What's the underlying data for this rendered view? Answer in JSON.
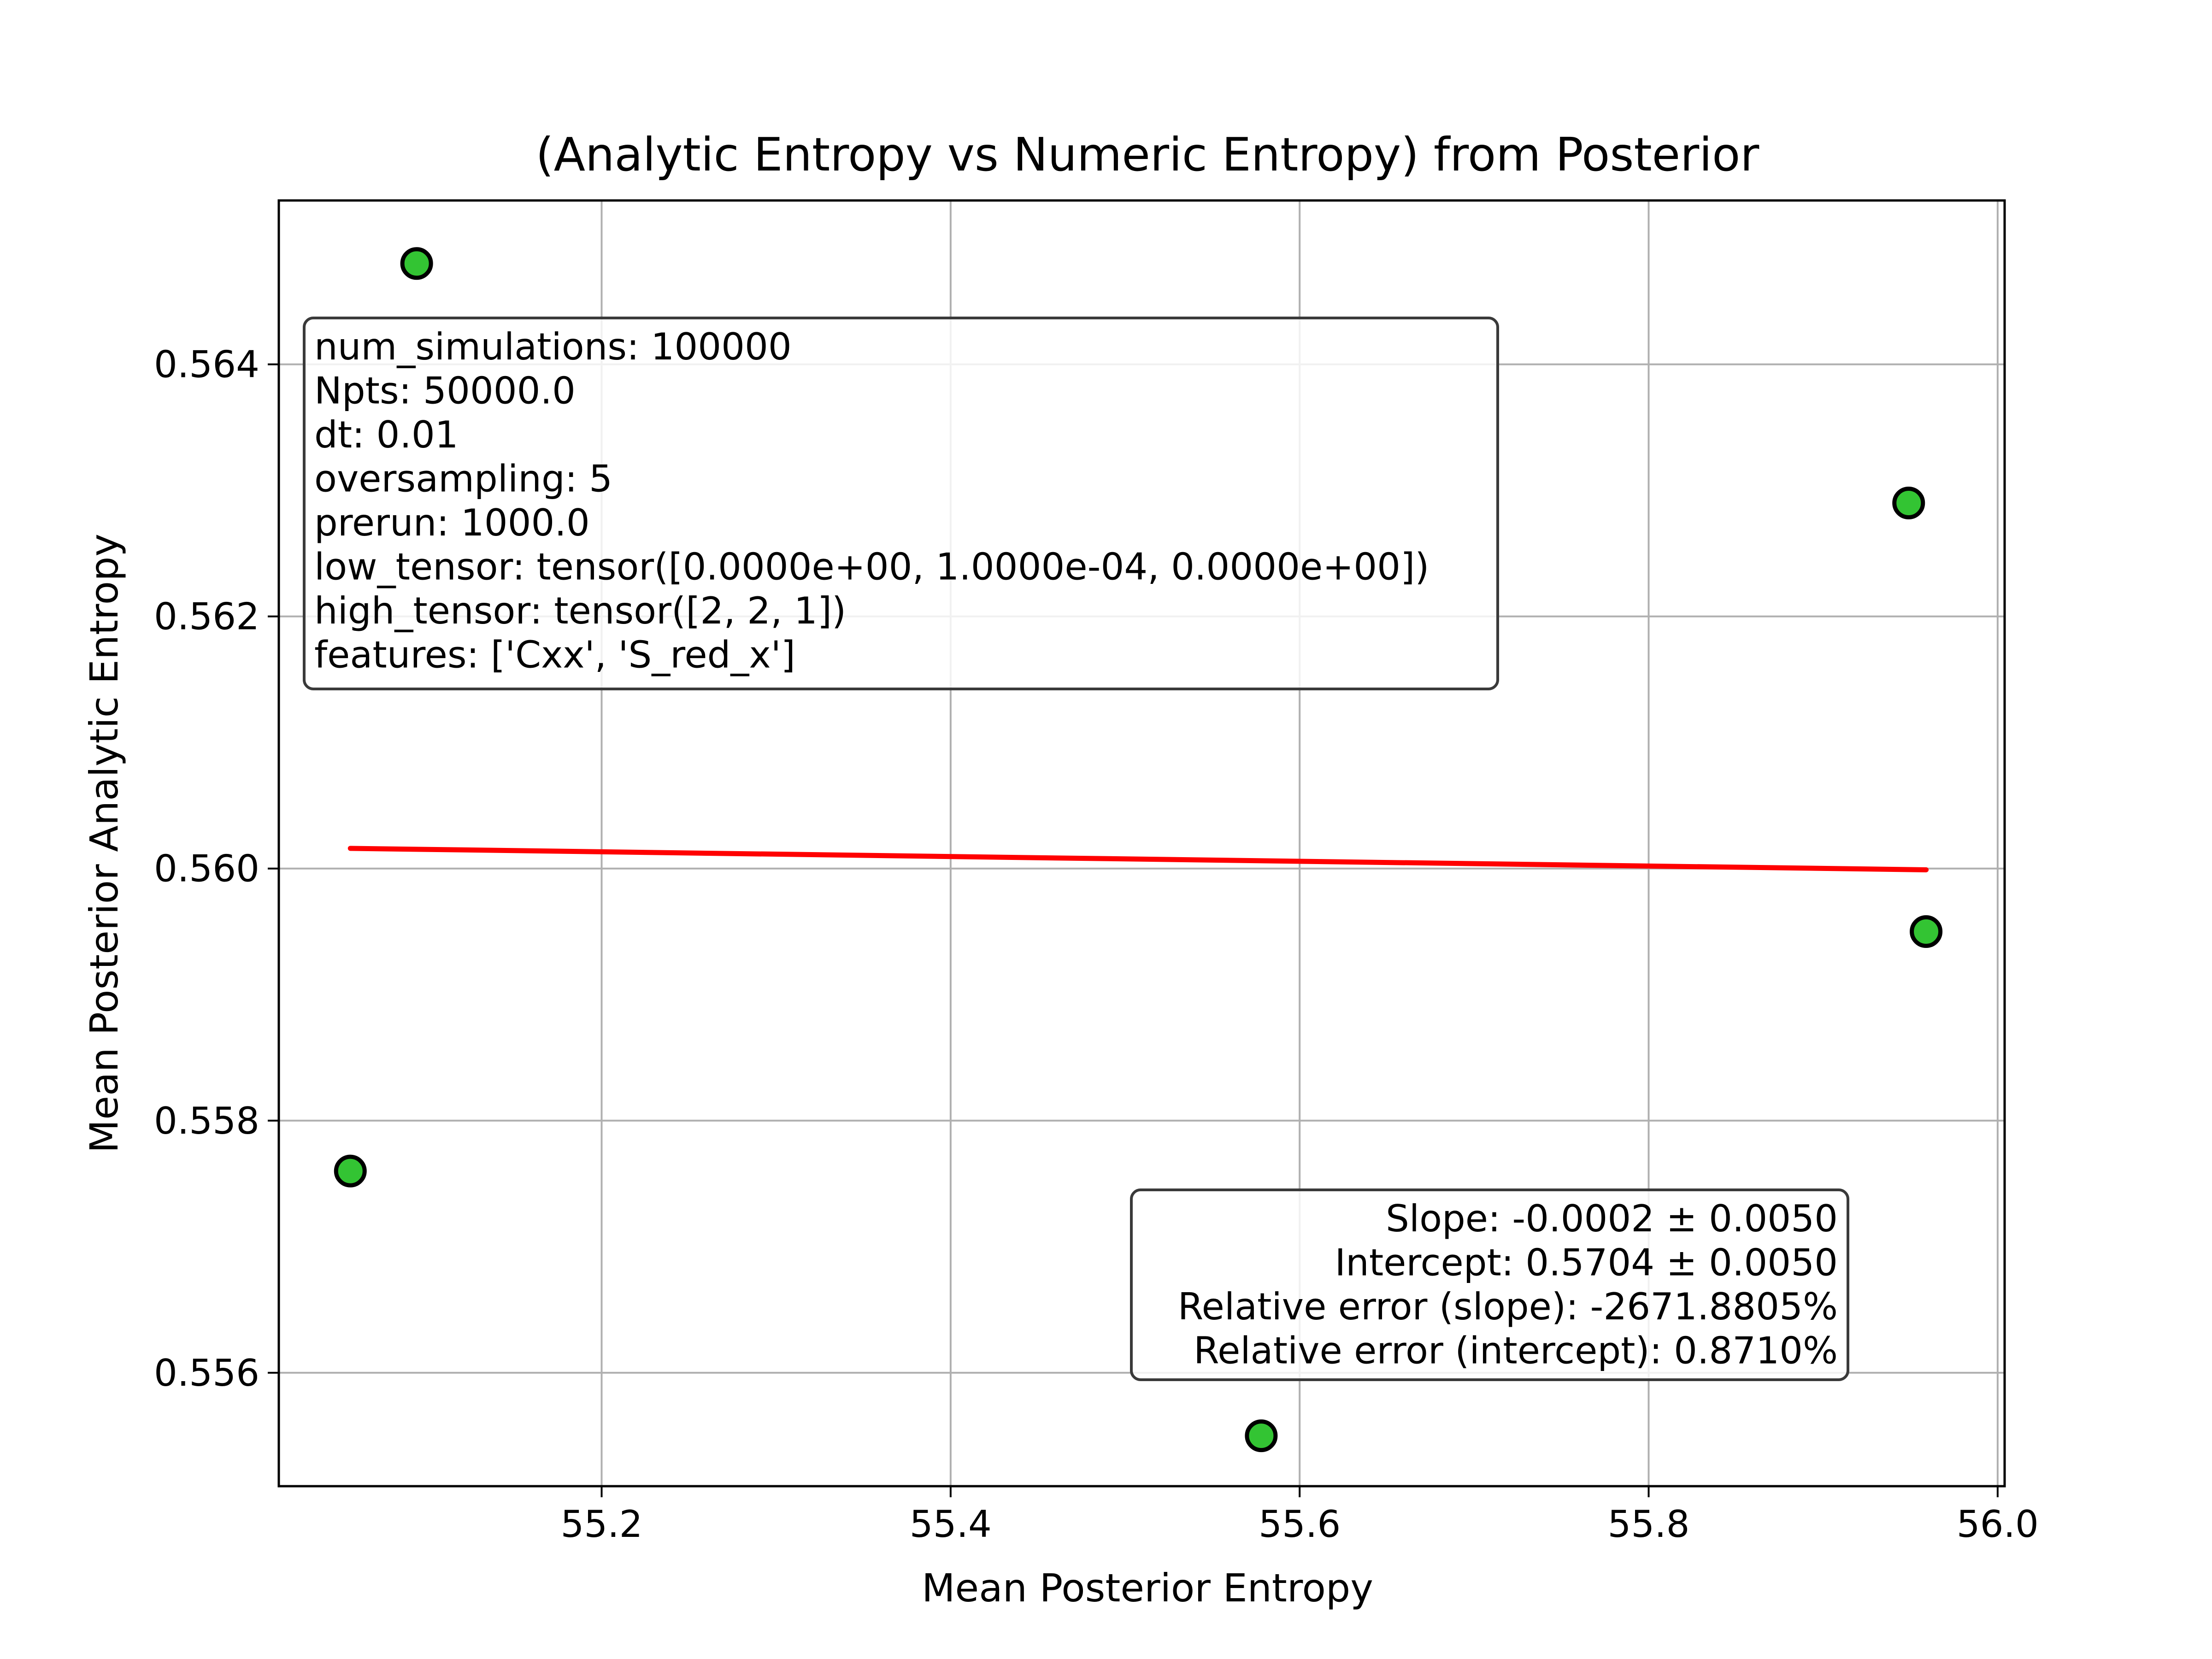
{
  "chart_data": {
    "type": "scatter",
    "title": "(Analytic Entropy vs Numeric Entropy) from Posterior",
    "xlabel": "Mean Posterior Entropy",
    "ylabel": "Mean Posterior Analytic Entropy",
    "xlim": [
      55.015,
      56.004
    ],
    "ylim": [
      0.5551,
      0.5653
    ],
    "xticks": [
      55.2,
      55.4,
      55.6,
      55.8,
      56.0
    ],
    "xtick_labels": [
      "55.2",
      "55.4",
      "55.6",
      "55.8",
      "56.0"
    ],
    "yticks": [
      0.556,
      0.558,
      0.56,
      0.562,
      0.564
    ],
    "ytick_labels": [
      "0.556",
      "0.558",
      "0.560",
      "0.562",
      "0.564"
    ],
    "grid": true,
    "points": [
      {
        "x": 55.094,
        "y": 0.5648
      },
      {
        "x": 55.056,
        "y": 0.5576
      },
      {
        "x": 55.578,
        "y": 0.5555
      },
      {
        "x": 55.949,
        "y": 0.5629
      },
      {
        "x": 55.959,
        "y": 0.5595
      }
    ],
    "fit_line": {
      "x": [
        55.056,
        55.959
      ],
      "y": [
        0.56016,
        0.55999
      ]
    },
    "colors": {
      "points": "#33c433",
      "point_edge": "#000000",
      "fit_line": "#ff0000",
      "grid": "#b0b0b0"
    },
    "info_box": {
      "position": "top-left",
      "lines": [
        "num_simulations: 100000",
        "Npts: 50000.0",
        "dt: 0.01",
        "oversampling: 5",
        "prerun: 1000.0",
        "low_tensor: tensor([0.0000e+00, 1.0000e-04, 0.0000e+00])",
        "high_tensor: tensor([2, 2, 1])",
        "features: ['Cxx', 'S_red_x']"
      ]
    },
    "stats_box": {
      "position": "bottom-right",
      "lines": [
        "Slope: -0.0002 ± 0.0050",
        "Intercept: 0.5704 ± 0.0050",
        "Relative error (slope): -2671.8805%",
        "Relative error (intercept): 0.8710%"
      ]
    }
  }
}
